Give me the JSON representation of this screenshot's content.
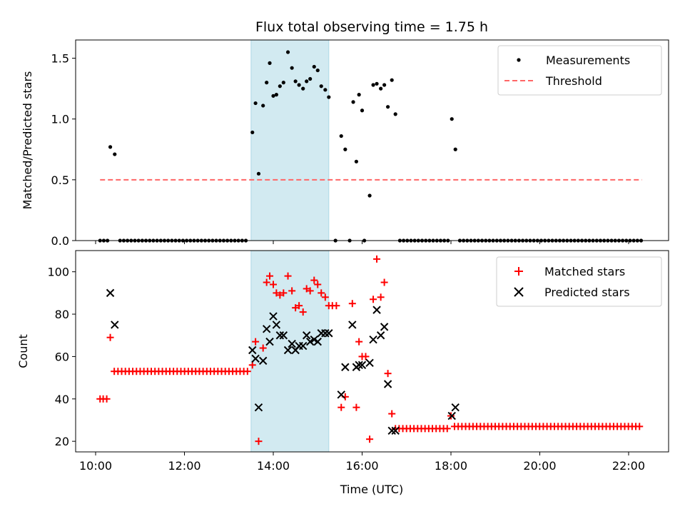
{
  "chart_data": {
    "type": "scatter",
    "title": "Flux total observing time = 1.75 h",
    "xlabel": "Time (UTC)",
    "xlim": [
      9.55,
      22.9
    ],
    "xticks": [
      10,
      12,
      14,
      16,
      18,
      20,
      22
    ],
    "xtick_labels": [
      "10:00",
      "12:00",
      "14:00",
      "16:00",
      "18:00",
      "20:00",
      "22:00"
    ],
    "highlight_span": [
      13.5,
      15.25
    ],
    "colors": {
      "span": "#add8e6",
      "measurements": "#000000",
      "threshold": "#ff6666",
      "matched": "#ff0000",
      "predicted": "#000000"
    },
    "panels": [
      {
        "ylabel": "Matched/Predicted stars",
        "ylim": [
          0,
          1.65
        ],
        "yticks": [
          0.0,
          0.5,
          1.0,
          1.5
        ],
        "ytick_labels": [
          "0.0",
          "0.5",
          "1.0",
          "1.5"
        ],
        "legend": [
          "Measurements",
          "Threshold"
        ],
        "legend_position": "top-right",
        "threshold": {
          "name": "Threshold",
          "value": 0.5,
          "x_range": [
            10.1,
            22.3
          ]
        },
        "measurements_series_name": "Measurements",
        "measurements": [
          [
            10.33,
            0.77
          ],
          [
            10.43,
            0.71
          ],
          [
            13.53,
            0.89
          ],
          [
            13.6,
            1.13
          ],
          [
            13.67,
            0.55
          ],
          [
            13.77,
            1.11
          ],
          [
            13.85,
            1.3
          ],
          [
            13.92,
            1.46
          ],
          [
            14.0,
            1.19
          ],
          [
            14.07,
            1.2
          ],
          [
            14.15,
            1.27
          ],
          [
            14.23,
            1.3
          ],
          [
            14.33,
            1.55
          ],
          [
            14.42,
            1.42
          ],
          [
            14.5,
            1.31
          ],
          [
            14.58,
            1.28
          ],
          [
            14.67,
            1.25
          ],
          [
            14.75,
            1.31
          ],
          [
            14.83,
            1.33
          ],
          [
            14.92,
            1.43
          ],
          [
            15.0,
            1.4
          ],
          [
            15.08,
            1.27
          ],
          [
            15.17,
            1.24
          ],
          [
            15.25,
            1.18
          ],
          [
            15.53,
            0.86
          ],
          [
            15.62,
            0.75
          ],
          [
            15.8,
            1.14
          ],
          [
            15.87,
            0.65
          ],
          [
            15.93,
            1.2
          ],
          [
            16.0,
            1.07
          ],
          [
            16.17,
            0.37
          ],
          [
            16.25,
            1.28
          ],
          [
            16.33,
            1.29
          ],
          [
            16.42,
            1.25
          ],
          [
            16.5,
            1.28
          ],
          [
            16.58,
            1.1
          ],
          [
            16.67,
            1.32
          ],
          [
            16.75,
            1.04
          ],
          [
            18.02,
            1.0
          ],
          [
            18.1,
            0.75
          ]
        ],
        "zero_run_segments": [
          [
            10.1,
            10.3
          ],
          [
            10.55,
            13.45
          ],
          [
            15.4,
            15.47
          ],
          [
            15.72,
            15.75
          ],
          [
            16.05,
            16.08
          ],
          [
            16.85,
            17.95
          ],
          [
            18.2,
            22.3
          ]
        ]
      },
      {
        "ylabel": "Count",
        "ylim": [
          15,
          110
        ],
        "yticks": [
          20,
          40,
          60,
          80,
          100
        ],
        "ytick_labels": [
          "20",
          "40",
          "60",
          "80",
          "100"
        ],
        "legend": [
          "Matched stars",
          "Predicted stars"
        ],
        "legend_position": "top-right",
        "series": [
          {
            "name": "Matched stars",
            "points": [
              [
                10.1,
                40
              ],
              [
                10.17,
                40
              ],
              [
                10.25,
                40
              ],
              [
                10.33,
                69
              ],
              [
                13.53,
                56
              ],
              [
                13.6,
                67
              ],
              [
                13.67,
                20
              ],
              [
                13.77,
                64
              ],
              [
                13.85,
                95
              ],
              [
                13.92,
                98
              ],
              [
                14.0,
                94
              ],
              [
                14.07,
                90
              ],
              [
                14.15,
                89
              ],
              [
                14.23,
                90
              ],
              [
                14.33,
                98
              ],
              [
                14.42,
                91
              ],
              [
                14.5,
                83
              ],
              [
                14.58,
                84
              ],
              [
                14.67,
                81
              ],
              [
                14.75,
                92
              ],
              [
                14.83,
                91
              ],
              [
                14.92,
                96
              ],
              [
                15.0,
                94
              ],
              [
                15.08,
                90
              ],
              [
                15.17,
                88
              ],
              [
                15.25,
                84
              ],
              [
                15.33,
                84
              ],
              [
                15.42,
                84
              ],
              [
                15.53,
                36
              ],
              [
                15.62,
                41
              ],
              [
                15.78,
                85
              ],
              [
                15.87,
                36
              ],
              [
                15.93,
                67
              ],
              [
                16.0,
                60
              ],
              [
                16.08,
                60
              ],
              [
                16.17,
                21
              ],
              [
                16.25,
                87
              ],
              [
                16.33,
                106
              ],
              [
                16.42,
                88
              ],
              [
                16.5,
                95
              ],
              [
                16.58,
                52
              ],
              [
                16.67,
                33
              ]
            ],
            "constant_runs": [
              {
                "start": 10.42,
                "end": 13.45,
                "step": 0.0833,
                "value": 53
              },
              {
                "start": 16.75,
                "end": 17.95,
                "step": 0.0833,
                "value": 26
              },
              {
                "start": 18.0,
                "end": 18.0,
                "step": 0.0833,
                "value": 32
              },
              {
                "start": 18.08,
                "end": 22.3,
                "step": 0.0833,
                "value": 27
              }
            ]
          },
          {
            "name": "Predicted stars",
            "points": [
              [
                10.33,
                90
              ],
              [
                10.43,
                75
              ],
              [
                13.53,
                63
              ],
              [
                13.6,
                59
              ],
              [
                13.67,
                36
              ],
              [
                13.77,
                58
              ],
              [
                13.85,
                73
              ],
              [
                13.92,
                67
              ],
              [
                14.0,
                79
              ],
              [
                14.07,
                75
              ],
              [
                14.15,
                70
              ],
              [
                14.23,
                70
              ],
              [
                14.33,
                63
              ],
              [
                14.42,
                66
              ],
              [
                14.5,
                63
              ],
              [
                14.58,
                65
              ],
              [
                14.67,
                65
              ],
              [
                14.75,
                70
              ],
              [
                14.83,
                67
              ],
              [
                14.92,
                68
              ],
              [
                15.0,
                67
              ],
              [
                15.08,
                71
              ],
              [
                15.17,
                71
              ],
              [
                15.25,
                71
              ],
              [
                15.53,
                42
              ],
              [
                15.62,
                55
              ],
              [
                15.78,
                75
              ],
              [
                15.87,
                55
              ],
              [
                15.93,
                56
              ],
              [
                16.0,
                56
              ],
              [
                16.17,
                57
              ],
              [
                16.25,
                68
              ],
              [
                16.33,
                82
              ],
              [
                16.42,
                70
              ],
              [
                16.5,
                74
              ],
              [
                16.58,
                47
              ],
              [
                16.67,
                25
              ],
              [
                16.75,
                25
              ],
              [
                18.02,
                32
              ],
              [
                18.1,
                36
              ]
            ]
          }
        ]
      }
    ]
  }
}
